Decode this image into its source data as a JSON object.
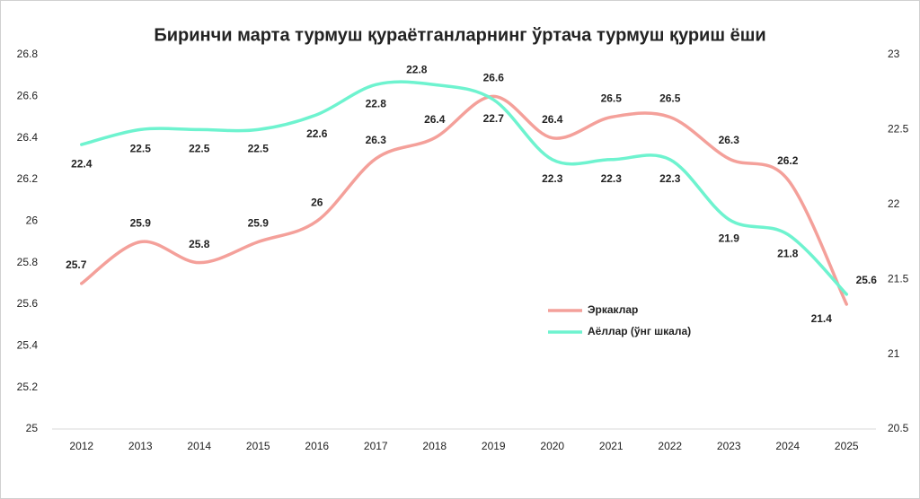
{
  "chart_data": {
    "type": "line",
    "title": "Биринчи марта турмуш қураётганларнинг ўртача турмуш қуриш ёши",
    "categories": [
      "2012",
      "2013",
      "2014",
      "2015",
      "2016",
      "2017",
      "2018",
      "2019",
      "2020",
      "2021",
      "2022",
      "2023",
      "2024",
      "2025"
    ],
    "series": [
      {
        "name": "Эркаклар",
        "color": "#f4a09a",
        "values": [
          25.7,
          25.9,
          25.8,
          25.9,
          26,
          26.3,
          26.4,
          26.6,
          26.4,
          26.5,
          26.5,
          26.3,
          26.2,
          25.6
        ]
      },
      {
        "name": "Аёллар (ўнг шкала)",
        "color": "#6ef3cf",
        "axis": "y2",
        "values": [
          22.4,
          22.5,
          22.5,
          22.5,
          22.6,
          22.8,
          22.8,
          22.7,
          22.3,
          22.3,
          22.3,
          21.9,
          21.8,
          21.4
        ]
      }
    ],
    "ylim": [
      25,
      26.8
    ],
    "yticks": [
      25,
      25.2,
      25.4,
      25.6,
      25.8,
      26,
      26.2,
      26.4,
      26.6,
      26.8
    ],
    "y2lim": [
      20.5,
      23
    ],
    "y2ticks": [
      20.5,
      21,
      21.5,
      22,
      22.5,
      23
    ],
    "smooth": true
  }
}
